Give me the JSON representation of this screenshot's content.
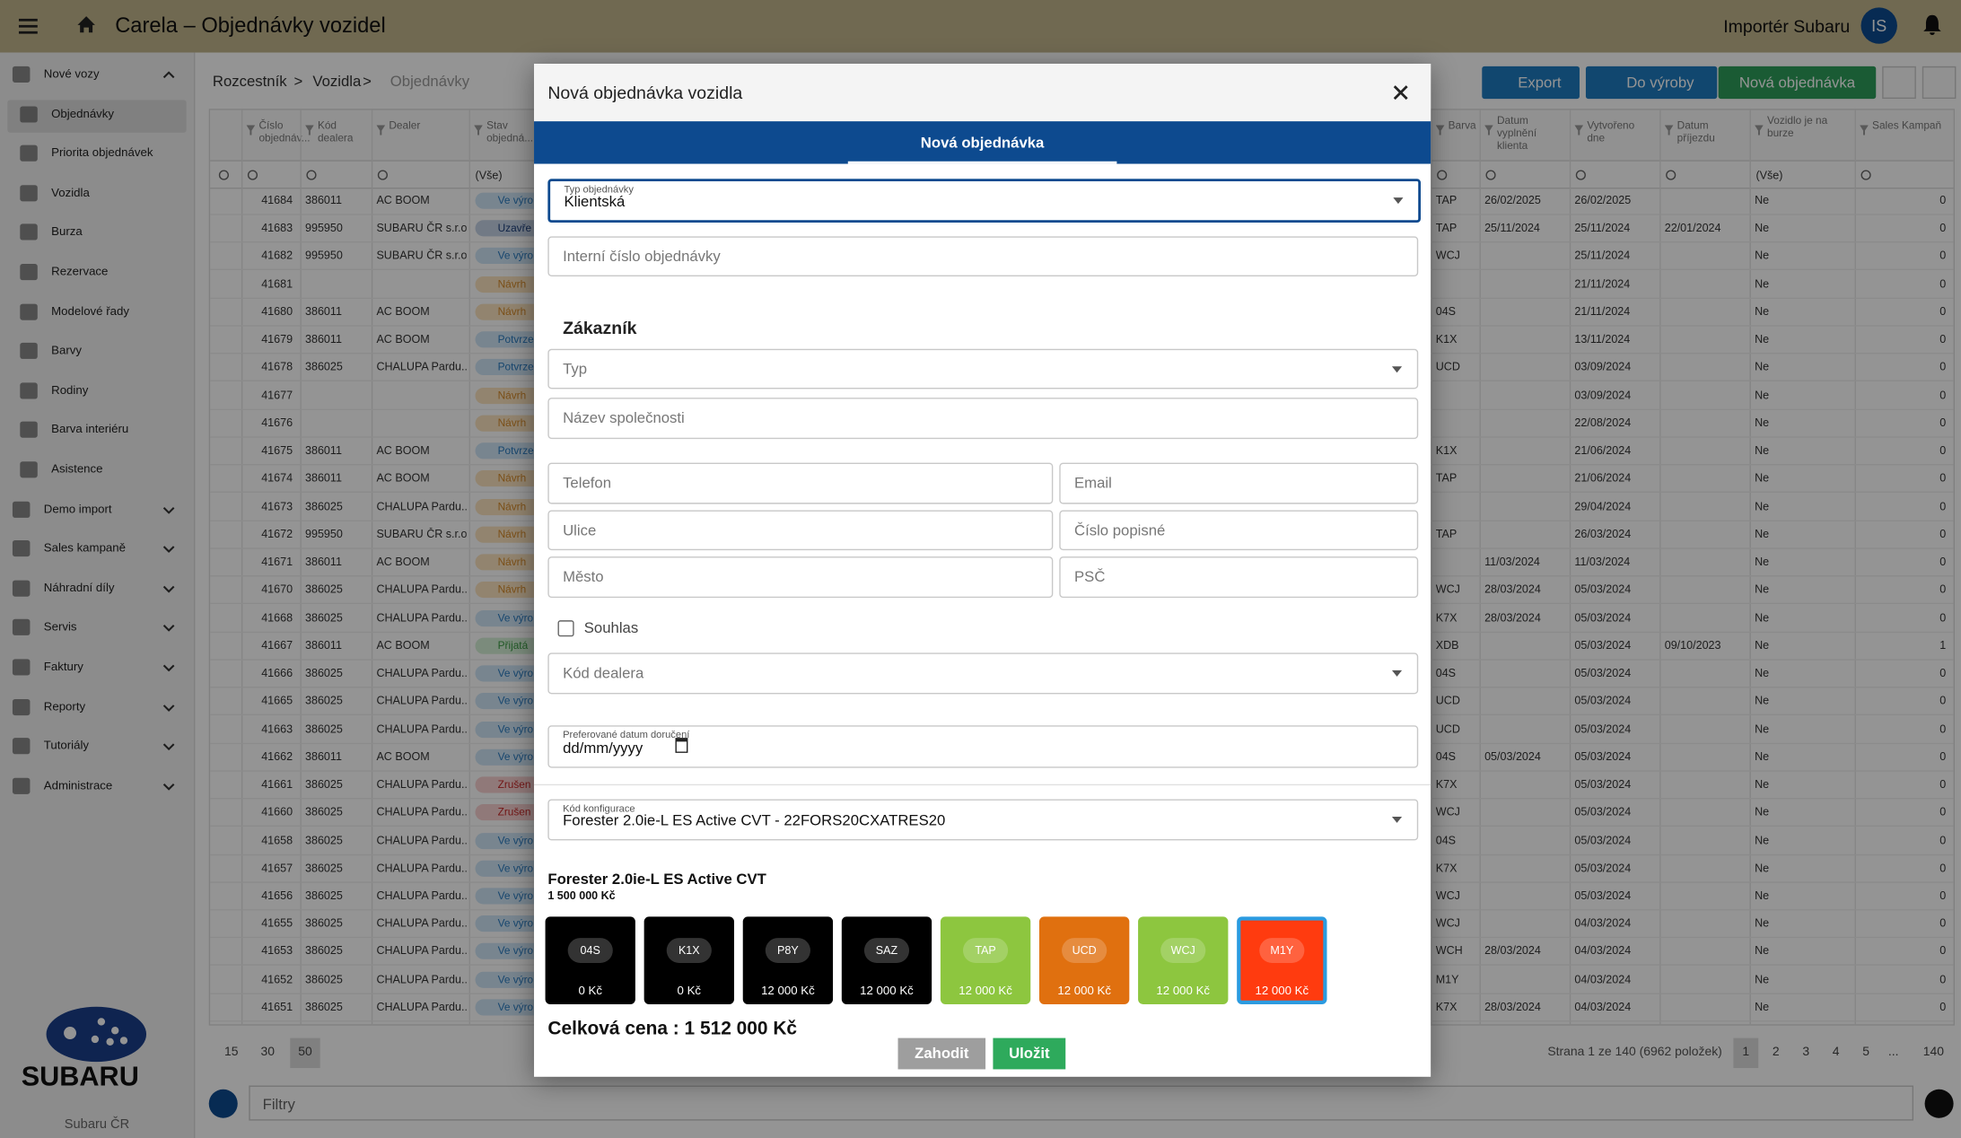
{
  "header": {
    "title": "Carela – Objednávky vozidel",
    "user": "Importér Subaru",
    "avatar": "IS"
  },
  "sidebar": {
    "items": [
      {
        "label": "Nové vozy",
        "kind": "group",
        "open": true
      },
      {
        "label": "Objednávky",
        "kind": "sub",
        "active": true
      },
      {
        "label": "Priorita objednávek",
        "kind": "sub"
      },
      {
        "label": "Vozidla",
        "kind": "sub"
      },
      {
        "label": "Burza",
        "kind": "sub"
      },
      {
        "label": "Rezervace",
        "kind": "sub"
      },
      {
        "label": "Modelové řady",
        "kind": "sub"
      },
      {
        "label": "Barvy",
        "kind": "sub"
      },
      {
        "label": "Rodiny",
        "kind": "sub"
      },
      {
        "label": "Barva interiéru",
        "kind": "sub"
      },
      {
        "label": "Asistence",
        "kind": "sub"
      },
      {
        "label": "Demo import",
        "kind": "group"
      },
      {
        "label": "Sales kampaně",
        "kind": "group"
      },
      {
        "label": "Náhradní díly",
        "kind": "group"
      },
      {
        "label": "Servis",
        "kind": "group"
      },
      {
        "label": "Faktury",
        "kind": "group"
      },
      {
        "label": "Reporty",
        "kind": "group"
      },
      {
        "label": "Tutoriály",
        "kind": "group"
      },
      {
        "label": "Administrace",
        "kind": "group"
      }
    ],
    "logo": "SUBARU",
    "footer": "Subaru ČR"
  },
  "breadcrumb": {
    "items": [
      "Rozcestník",
      "Vozidla",
      "Objednávky"
    ],
    "separator": ">"
  },
  "toolbar": [
    "Export",
    "Do výroby",
    "Nová objednávka"
  ],
  "table": {
    "columns": [
      "Číslo objednáv...",
      "Kód dealera",
      "Dealer",
      "Stav objedná...",
      "Barva",
      "Datum vyplnění klienta",
      "Vytvořeno dne",
      "Datum příjezdu",
      "Vozidlo je na burze",
      "Sales Kampaň"
    ],
    "filter_all": "(Vše)",
    "rows": [
      [
        "41684",
        "386011",
        "AC BOOM",
        "Ve výro",
        "TAP",
        "26/02/2025",
        "26/02/2025",
        null,
        "Ne",
        "0"
      ],
      [
        "41683",
        "995950",
        "SUBARU ČR s.r.o.",
        "Uzavře",
        "TAP",
        "25/11/2024",
        "25/11/2024",
        "22/01/2024",
        "Ne",
        "0"
      ],
      [
        "41682",
        "995950",
        "SUBARU ČR s.r.o.",
        "Ve výro",
        "WCJ",
        null,
        "25/11/2024",
        null,
        "Ne",
        "0"
      ],
      [
        "41681",
        null,
        null,
        "Návrh",
        null,
        null,
        "21/11/2024",
        null,
        "Ne",
        "0"
      ],
      [
        "41680",
        "386011",
        "AC BOOM",
        "Návrh",
        "04S",
        null,
        "21/11/2024",
        null,
        "Ne",
        "0"
      ],
      [
        "41679",
        "386011",
        "AC BOOM",
        "Potvrze",
        "K1X",
        null,
        "13/11/2024",
        null,
        "Ne",
        "0"
      ],
      [
        "41678",
        "386025",
        "CHALUPA Pardu...",
        "Potvrze",
        "UCD",
        null,
        "03/09/2024",
        null,
        "Ne",
        "0"
      ],
      [
        "41677",
        null,
        null,
        "Návrh",
        null,
        null,
        "03/09/2024",
        null,
        "Ne",
        "0"
      ],
      [
        "41676",
        null,
        null,
        "Návrh",
        null,
        null,
        "22/08/2024",
        null,
        "Ne",
        "0"
      ],
      [
        "41675",
        "386011",
        "AC BOOM",
        "Potvrze",
        "K1X",
        null,
        "21/06/2024",
        null,
        "Ne",
        "0"
      ],
      [
        "41674",
        "386011",
        "AC BOOM",
        "Návrh",
        "TAP",
        null,
        "21/06/2024",
        null,
        "Ne",
        "0"
      ],
      [
        "41673",
        "386025",
        "CHALUPA Pardu...",
        "Návrh",
        null,
        null,
        "29/04/2024",
        null,
        "Ne",
        "0"
      ],
      [
        "41672",
        "995950",
        "SUBARU ČR s.r.o.",
        "Návrh",
        "TAP",
        null,
        "26/03/2024",
        null,
        "Ne",
        "0"
      ],
      [
        "41671",
        "386011",
        "AC BOOM",
        "Návrh",
        null,
        "11/03/2024",
        "11/03/2024",
        null,
        "Ne",
        "0"
      ],
      [
        "41670",
        "386025",
        "CHALUPA Pardu...",
        "Návrh",
        "WCJ",
        "28/03/2024",
        "05/03/2024",
        null,
        "Ne",
        "0"
      ],
      [
        "41668",
        "386025",
        "CHALUPA Pardu...",
        "Ve výro",
        "K7X",
        "28/03/2024",
        "05/03/2024",
        null,
        "Ne",
        "0"
      ],
      [
        "41667",
        "386011",
        "AC BOOM",
        "Přijatá",
        "XDB",
        null,
        "05/03/2024",
        "09/10/2023",
        "Ne",
        "1"
      ],
      [
        "41666",
        "386025",
        "CHALUPA Pardu...",
        "Ve výro",
        "04S",
        null,
        "05/03/2024",
        null,
        "Ne",
        "0"
      ],
      [
        "41665",
        "386025",
        "CHALUPA Pardu...",
        "Ve výro",
        "UCD",
        null,
        "05/03/2024",
        null,
        "Ne",
        "0"
      ],
      [
        "41663",
        "386025",
        "CHALUPA Pardu...",
        "Ve výro",
        "UCD",
        null,
        "05/03/2024",
        null,
        "Ne",
        "0"
      ],
      [
        "41662",
        "386011",
        "AC BOOM",
        "Ve výro",
        "04S",
        "05/03/2024",
        "05/03/2024",
        null,
        "Ne",
        "0"
      ],
      [
        "41661",
        "386025",
        "CHALUPA Pardu...",
        "Zrušen",
        "K7X",
        null,
        "05/03/2024",
        null,
        "Ne",
        "0"
      ],
      [
        "41660",
        "386025",
        "CHALUPA Pardu...",
        "Zrušen",
        "WCJ",
        null,
        "05/03/2024",
        null,
        "Ne",
        "0"
      ],
      [
        "41658",
        "386025",
        "CHALUPA Pardu...",
        "Ve výro",
        "04S",
        null,
        "05/03/2024",
        null,
        "Ne",
        "0"
      ],
      [
        "41657",
        "386025",
        "CHALUPA Pardu...",
        "Ve výro",
        "K7X",
        null,
        "05/03/2024",
        null,
        "Ne",
        "0"
      ],
      [
        "41656",
        "386025",
        "CHALUPA Pardu...",
        "Ve výro",
        "WCJ",
        null,
        "05/03/2024",
        null,
        "Ne",
        "0"
      ],
      [
        "41655",
        "386025",
        "CHALUPA Pardu...",
        "Ve výro",
        "WCJ",
        null,
        "04/03/2024",
        null,
        "Ne",
        "0"
      ],
      [
        "41653",
        "386025",
        "CHALUPA Pardu...",
        "Ve výro",
        "WCH",
        "28/03/2024",
        "04/03/2024",
        null,
        "Ne",
        "0"
      ],
      [
        "41652",
        "386025",
        "CHALUPA Pardu...",
        "Ve výro",
        "M1Y",
        null,
        "04/03/2024",
        null,
        "Ne",
        "0"
      ],
      [
        "41651",
        "386025",
        "CHALUPA Pardu...",
        "Ve výro",
        "K7X",
        "28/03/2024",
        "04/03/2024",
        null,
        "Ne",
        "0"
      ]
    ]
  },
  "pagination": {
    "sizes": [
      "15",
      "30",
      "50"
    ],
    "info": "Strana 1 ze 140 (6962 položek)",
    "pages": [
      "1",
      "2",
      "3",
      "4",
      "5",
      "...",
      "140"
    ]
  },
  "filter_bar": "Filtry",
  "modal": {
    "title": "Nová objednávka vozidla",
    "tab": "Nová objednávka",
    "order_type": {
      "label": "Typ objednávky",
      "value": "Klientská"
    },
    "internal_number": "Interní číslo objednávky",
    "section": "Zákazník",
    "type": "Typ",
    "company": "Název společnosti",
    "phone": "Telefon",
    "email": "Email",
    "street": "Ulice",
    "house_number": "Číslo popisné",
    "city": "Město",
    "zip": "PSČ",
    "consent": "Souhlas",
    "dealer_code": "Kód dealera",
    "date": {
      "label": "Preferované datum doručení",
      "value": "dd/mm/yyyy"
    },
    "config": {
      "label": "Kód konfigurace",
      "value": "Forester 2.0ie-L ES Active CVT - 22FORS20CXATRES20"
    },
    "model": "Forester 2.0ie-L ES Active CVT",
    "model_price": "1 500 000 Kč",
    "colors": [
      {
        "code": "04S",
        "price": "0 Kč",
        "color": "#000000"
      },
      {
        "code": "K1X",
        "price": "0 Kč",
        "color": "#000000"
      },
      {
        "code": "P8Y",
        "price": "12 000 Kč",
        "color": "#000000"
      },
      {
        "code": "SAZ",
        "price": "12 000 Kč",
        "color": "#000000"
      },
      {
        "code": "TAP",
        "price": "12 000 Kč",
        "color": "#8dc63f"
      },
      {
        "code": "UCD",
        "price": "12 000 Kč",
        "color": "#e0700f"
      },
      {
        "code": "WCJ",
        "price": "12 000 Kč",
        "color": "#8dc63f"
      },
      {
        "code": "M1Y",
        "price": "12 000 Kč",
        "color": "#ff3b0f",
        "selected": true
      }
    ],
    "total": "Celková cena : 1 512 000 Kč",
    "discard": "Zahodit",
    "save": "Uložit"
  }
}
